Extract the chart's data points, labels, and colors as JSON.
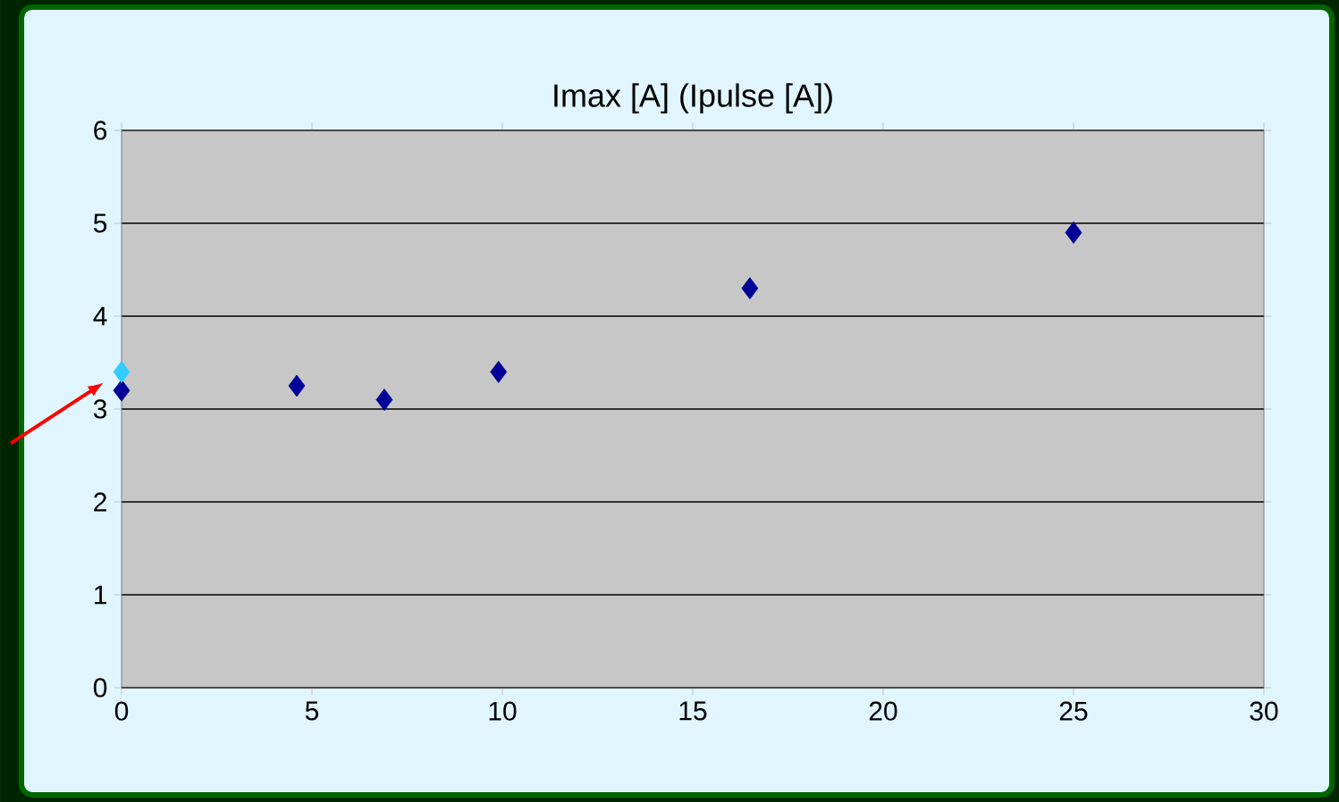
{
  "chart_data": {
    "type": "scatter",
    "title": "Imax [A] (Ipulse [A])",
    "series": [
      {
        "color": "#000099",
        "x": [
          0,
          4.6,
          6.9,
          9.9,
          16.5,
          25
        ],
        "values": [
          3.2,
          3.25,
          3.1,
          3.4,
          4.3,
          4.9
        ]
      },
      {
        "color": "#33ccff",
        "x": [
          0
        ],
        "values": [
          3.4
        ]
      }
    ],
    "xlim": [
      0,
      30
    ],
    "xticks": [
      0,
      5,
      10,
      15,
      20,
      25,
      30
    ],
    "ylim": [
      0,
      6
    ],
    "yticks": [
      0,
      1,
      2,
      3,
      4,
      5,
      6
    ],
    "grid": "y",
    "marker": "diamond"
  }
}
